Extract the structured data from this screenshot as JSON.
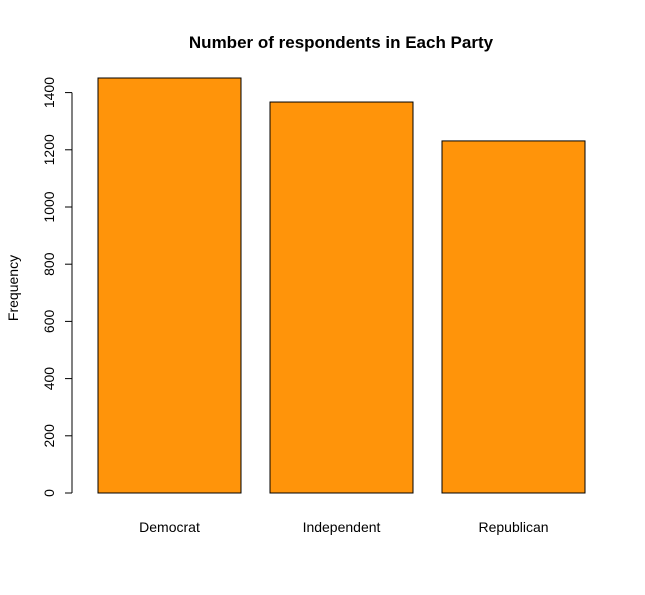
{
  "chart_data": {
    "type": "bar",
    "title": "Number of respondents in Each Party",
    "xlabel": "",
    "ylabel": "Frequency",
    "categories": [
      "Democrat",
      "Independent",
      "Republican"
    ],
    "values": [
      1451,
      1367,
      1231
    ],
    "ylim": [
      0,
      1451
    ],
    "yticks": [
      0,
      200,
      400,
      600,
      800,
      1000,
      1200,
      1400
    ],
    "bar_color": "#FF940A",
    "grid": false,
    "legend": "none"
  }
}
